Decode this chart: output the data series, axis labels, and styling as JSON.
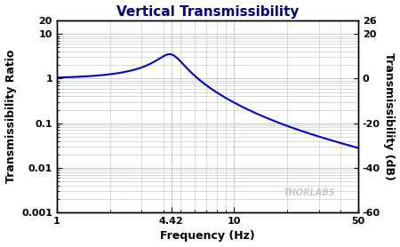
{
  "title": "Vertical Transmissibility",
  "xlabel": "Frequency (Hz)",
  "ylabel_left": "Transmissibility Ratio",
  "ylabel_right": "Transmissibility (dB)",
  "line_color": "#0000CC",
  "line_width": 1.5,
  "plot_bg_color": "#FFFFFF",
  "fig_bg_color": "#FFFFFF",
  "watermark": "THORLABS",
  "watermark_color": "#BBBBBB",
  "xlim": [
    1,
    50
  ],
  "ylim_left": [
    0.001,
    20
  ],
  "ylim_right": [
    -60,
    26
  ],
  "fn": 4.42,
  "zeta": 0.15,
  "title_color": "#000080",
  "axis_label_color": "#000000",
  "tick_label_color": "#000000",
  "grid_color": "#CCCCCC",
  "xticks": [
    1,
    4.42,
    10,
    50
  ],
  "xtick_labels": [
    "1",
    "4.42",
    "10",
    "50"
  ],
  "yticks_left": [
    0.001,
    0.01,
    0.1,
    1,
    10,
    20
  ],
  "ytick_labels_left": [
    "0.001",
    "0.01",
    "0.1",
    "1",
    "10",
    "20"
  ],
  "yticks_right": [
    -60,
    -40,
    -20,
    0,
    20,
    26
  ],
  "ytick_labels_right": [
    "-60",
    "-40",
    "-20",
    "0",
    "20",
    "26"
  ]
}
